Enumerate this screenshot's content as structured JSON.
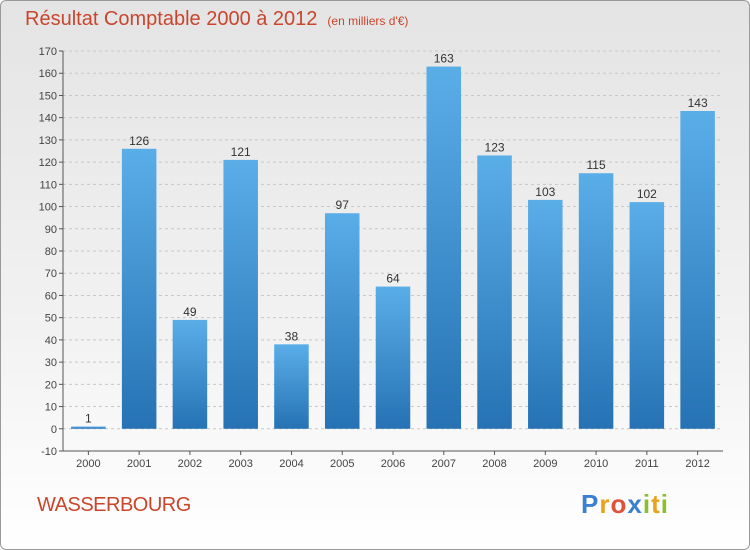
{
  "header": {
    "title": "Résultat Comptable 2000 à 2012",
    "unit": "(en milliers d'€)"
  },
  "footer": {
    "place": "WASSERBOURG",
    "brand": "Proxiti",
    "brand_letters": [
      {
        "ch": "P",
        "color": "#3b7fd1"
      },
      {
        "ch": "r",
        "color": "#e8a21d"
      },
      {
        "ch": "o",
        "color": "#e0533b"
      },
      {
        "ch": "x",
        "color": "#3b7fd1"
      },
      {
        "ch": "i",
        "color": "#8cbf2a"
      },
      {
        "ch": "t",
        "color": "#e8a21d"
      },
      {
        "ch": "i",
        "color": "#8cbf2a"
      }
    ]
  },
  "colors": {
    "title": "#c9452c",
    "bar_top": "#5aaee8",
    "bar_bottom": "#2672b4",
    "grid": "#c8c8c8"
  },
  "chart_data": {
    "type": "bar",
    "title": "Résultat Comptable 2000 à 2012",
    "xlabel": "",
    "ylabel": "(en milliers d'€)",
    "categories": [
      "2000",
      "2001",
      "2002",
      "2003",
      "2004",
      "2005",
      "2006",
      "2007",
      "2008",
      "2009",
      "2010",
      "2011",
      "2012"
    ],
    "values": [
      1,
      126,
      49,
      121,
      38,
      97,
      64,
      163,
      123,
      103,
      115,
      102,
      143
    ],
    "ylim": [
      -10,
      170
    ],
    "yticks": [
      -10,
      0,
      10,
      20,
      30,
      40,
      50,
      60,
      70,
      80,
      90,
      100,
      110,
      120,
      130,
      140,
      150,
      160,
      170
    ],
    "grid": true,
    "legend": "none"
  }
}
